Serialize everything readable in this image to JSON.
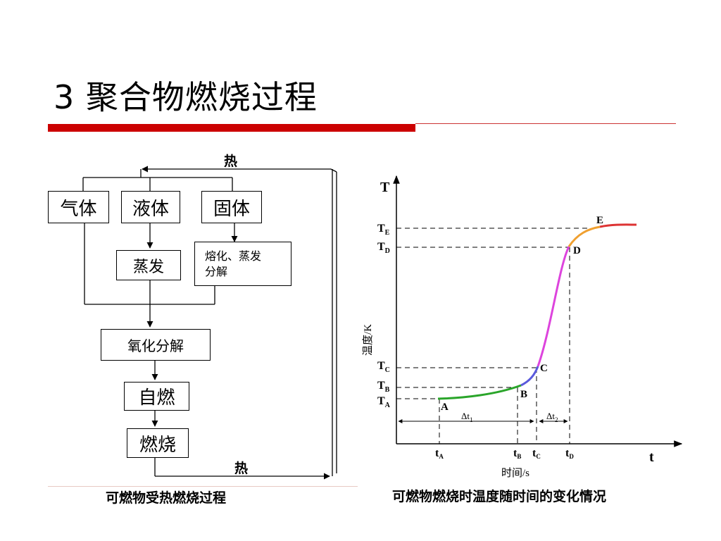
{
  "slide": {
    "title": "3 聚合物燃烧过程"
  },
  "colors": {
    "title_bar": "#cc0000",
    "title_bar_thin": "#cc3333",
    "curve_green": "#2aa52a",
    "curve_blue": "#5a5adc",
    "curve_magenta": "#dd44dd",
    "curve_orange": "#f0a030",
    "curve_red": "#dd3333"
  },
  "flowchart": {
    "heat_top": "热",
    "heat_bottom": "热",
    "states": [
      "气体",
      "液体",
      "固体"
    ],
    "evaporate": "蒸发",
    "melt_line1": "熔化、蒸发",
    "melt_line2": "分解",
    "oxidation": "氧化分解",
    "autoignite": "自燃",
    "combustion": "燃烧",
    "caption": "可燃物受热燃烧过程"
  },
  "chart_data": {
    "type": "line",
    "title": "",
    "xlabel": "时间/s",
    "ylabel": "温度/K",
    "x_axis_symbol": "t",
    "y_axis_symbol": "T",
    "y_ticks": [
      {
        "main": "T",
        "sub": "E"
      },
      {
        "main": "T",
        "sub": "D"
      },
      {
        "main": "T",
        "sub": "C"
      },
      {
        "main": "T",
        "sub": "B"
      },
      {
        "main": "T",
        "sub": "A"
      }
    ],
    "x_ticks": [
      {
        "main": "t",
        "sub": "A"
      },
      {
        "main": "t",
        "sub": "B"
      },
      {
        "main": "t",
        "sub": "C"
      },
      {
        "main": "t",
        "sub": "D"
      }
    ],
    "points": [
      "A",
      "B",
      "C",
      "D",
      "E"
    ],
    "intervals": [
      {
        "main": "Δt",
        "sub": "1"
      },
      {
        "main": "Δt",
        "sub": "2"
      }
    ],
    "caption": "可燃物燃烧时温度随时间的变化情况"
  }
}
